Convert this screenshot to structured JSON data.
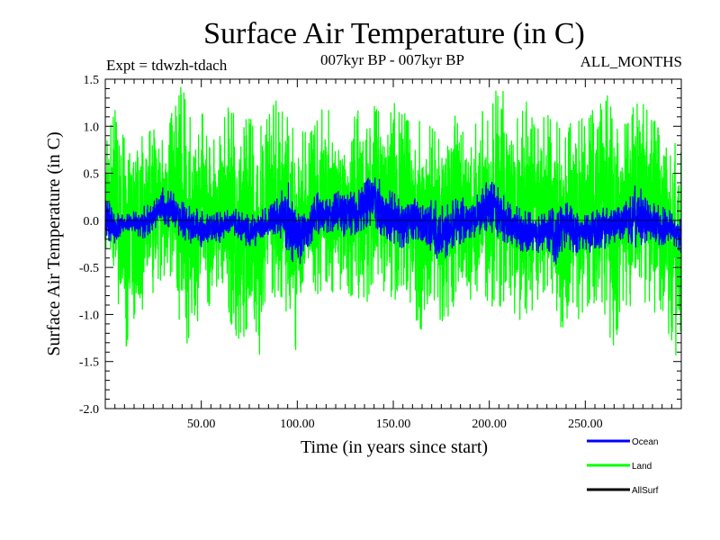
{
  "chart_data": {
    "type": "line",
    "title": "Surface Air Temperature (in C)",
    "subtitle": "007kyr BP - 007kyr BP",
    "experiment": "Expt = tdwzh-tdach",
    "period": "ALL_MONTHS",
    "xlabel": "Time (in years since start)",
    "ylabel": "Surface Air Temperature (in C)",
    "xlim": [
      0,
      300
    ],
    "ylim": [
      -2.0,
      1.5
    ],
    "x_ticks": [
      50,
      100,
      150,
      200,
      250
    ],
    "x_tick_labels": [
      "50.00",
      "100.00",
      "150.00",
      "200.00",
      "250.00"
    ],
    "y_ticks": [
      -2.0,
      -1.5,
      -1.0,
      -0.5,
      0.0,
      0.5,
      1.0,
      1.5
    ],
    "y_tick_labels": [
      "-2.0",
      "-1.5",
      "-1.0",
      "-0.5",
      "0.0",
      "0.5",
      "1.0",
      "1.5"
    ],
    "grid": false,
    "legend_position": "bottom-right, below plot",
    "series": [
      {
        "name": "Land",
        "color": "#00ff00",
        "x": [
          0,
          5,
          10,
          15,
          20,
          25,
          30,
          35,
          40,
          45,
          50,
          55,
          60,
          65,
          70,
          75,
          80,
          85,
          90,
          95,
          100,
          105,
          110,
          115,
          120,
          125,
          130,
          135,
          140,
          145,
          150,
          155,
          160,
          165,
          170,
          175,
          180,
          185,
          190,
          195,
          200,
          205,
          210,
          215,
          220,
          225,
          230,
          235,
          240,
          245,
          250,
          255,
          260,
          265,
          270,
          275,
          280,
          285,
          290,
          295,
          300
        ],
        "upper": [
          0.8,
          1.2,
          0.9,
          1.0,
          0.9,
          1.1,
          0.9,
          1.2,
          1.45,
          1.1,
          1.2,
          0.8,
          1.0,
          1.3,
          1.0,
          1.15,
          1.0,
          1.2,
          1.3,
          1.1,
          1.0,
          0.95,
          1.1,
          1.3,
          1.1,
          1.0,
          1.2,
          1.1,
          1.3,
          1.05,
          1.3,
          1.2,
          1.0,
          1.1,
          1.0,
          0.9,
          1.1,
          1.2,
          1.0,
          1.2,
          1.1,
          1.5,
          1.2,
          1.1,
          1.3,
          1.0,
          1.2,
          1.1,
          0.95,
          1.2,
          1.1,
          1.2,
          1.45,
          1.1,
          1.0,
          1.2,
          1.3,
          1.1,
          0.95,
          1.2,
          0.7
        ],
        "lower": [
          -0.3,
          -0.6,
          -1.4,
          -1.1,
          -1.0,
          -0.8,
          -0.6,
          -0.7,
          -1.3,
          -1.4,
          -1.0,
          -0.9,
          -0.6,
          -1.1,
          -1.3,
          -1.2,
          -1.58,
          -0.9,
          -0.8,
          -1.0,
          -1.45,
          -0.6,
          -0.9,
          -0.7,
          -0.85,
          -0.7,
          -1.0,
          -1.1,
          -0.6,
          -0.8,
          -0.9,
          -0.7,
          -1.0,
          -1.2,
          -0.8,
          -1.1,
          -1.0,
          -0.7,
          -0.9,
          -0.8,
          -0.9,
          -0.95,
          -0.8,
          -1.1,
          -1.0,
          -0.9,
          -0.7,
          -1.0,
          -1.35,
          -1.1,
          -1.0,
          -0.9,
          -1.2,
          -1.35,
          -0.9,
          -1.0,
          -0.8,
          -1.1,
          -1.0,
          -1.4,
          -1.5
        ]
      },
      {
        "name": "Ocean",
        "color": "#0000ff",
        "x": [
          0,
          5,
          10,
          15,
          20,
          25,
          30,
          35,
          40,
          45,
          50,
          55,
          60,
          65,
          70,
          75,
          80,
          85,
          90,
          95,
          100,
          105,
          110,
          115,
          120,
          125,
          130,
          135,
          140,
          145,
          150,
          155,
          160,
          165,
          170,
          175,
          180,
          185,
          190,
          195,
          200,
          205,
          210,
          215,
          220,
          225,
          230,
          235,
          240,
          245,
          250,
          255,
          260,
          265,
          270,
          275,
          280,
          285,
          290,
          295,
          300
        ],
        "upper": [
          0.3,
          0.1,
          0.05,
          0.1,
          0.15,
          0.2,
          0.35,
          0.3,
          0.2,
          0.15,
          0.1,
          0.05,
          0.1,
          0.15,
          0.1,
          0.05,
          0.1,
          0.15,
          0.25,
          0.45,
          0.2,
          0.15,
          0.3,
          0.25,
          0.3,
          0.35,
          0.3,
          0.4,
          0.55,
          0.35,
          0.3,
          0.2,
          0.25,
          0.2,
          0.3,
          0.15,
          0.2,
          0.25,
          0.2,
          0.3,
          0.45,
          0.35,
          0.2,
          0.15,
          0.1,
          0.05,
          0.1,
          0.15,
          0.2,
          0.1,
          0.05,
          0.1,
          0.15,
          0.1,
          0.2,
          0.45,
          0.3,
          0.2,
          0.15,
          0.1,
          0.0
        ],
        "lower": [
          -0.2,
          -0.25,
          -0.1,
          -0.15,
          -0.2,
          -0.1,
          -0.05,
          -0.1,
          -0.2,
          -0.25,
          -0.3,
          -0.2,
          -0.25,
          -0.15,
          -0.2,
          -0.3,
          -0.25,
          -0.2,
          -0.15,
          -0.35,
          -0.55,
          -0.3,
          -0.2,
          -0.15,
          -0.1,
          -0.2,
          -0.15,
          -0.1,
          -0.05,
          -0.2,
          -0.25,
          -0.3,
          -0.2,
          -0.25,
          -0.35,
          -0.5,
          -0.3,
          -0.25,
          -0.2,
          -0.15,
          -0.1,
          -0.2,
          -0.25,
          -0.3,
          -0.4,
          -0.35,
          -0.3,
          -0.5,
          -0.3,
          -0.35,
          -0.3,
          -0.4,
          -0.3,
          -0.25,
          -0.2,
          -0.3,
          -0.25,
          -0.2,
          -0.3,
          -0.25,
          -0.35
        ]
      },
      {
        "name": "AllSurf",
        "color": "#000000",
        "x": [],
        "upper": [],
        "lower": []
      }
    ]
  }
}
